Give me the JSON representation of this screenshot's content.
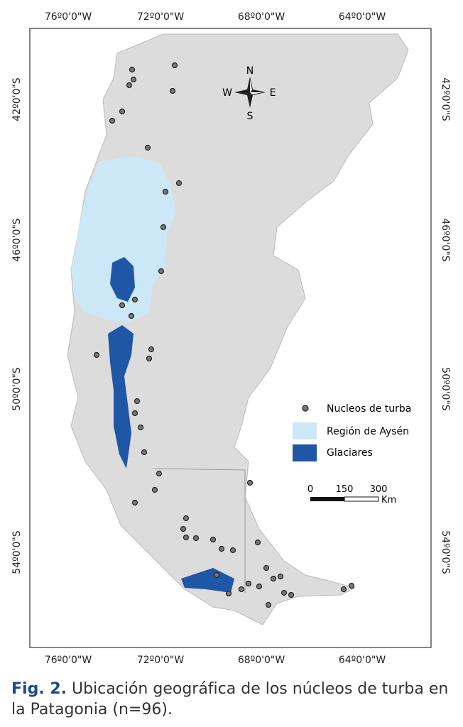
{
  "map": {
    "top_labels": [
      "76º0'0\"W",
      "72º0'0\"W",
      "68º0'0\"W",
      "64º0'0\"W"
    ],
    "bottom_labels": [
      "76º0'0\"W",
      "72º0'0\"W",
      "68º0'0\"W",
      "64º0'0\"W"
    ],
    "left_labels": [
      "42º0'0\"S",
      "46º0'0\"S",
      "50º0'0\"S",
      "54º0'0\"S"
    ],
    "right_labels": [
      "42º0'0\"S",
      "46º0'0\"S",
      "50º0'0\"S",
      "54º0'0\"S"
    ],
    "compass": {
      "n": "N",
      "w": "W",
      "e": "E",
      "s": "S"
    },
    "legend": [
      {
        "label": "Nucleos de turba"
      },
      {
        "label": "Región de Aysén"
      },
      {
        "label": "Glaciares"
      }
    ],
    "scale": {
      "ticks": [
        "0",
        "150",
        "300"
      ],
      "unit": "Km"
    }
  },
  "caption": {
    "label": "Fig. 2.",
    "text": " Ubicación geográfica de los núcleos de turba en la Patagonia (n=96)."
  }
}
